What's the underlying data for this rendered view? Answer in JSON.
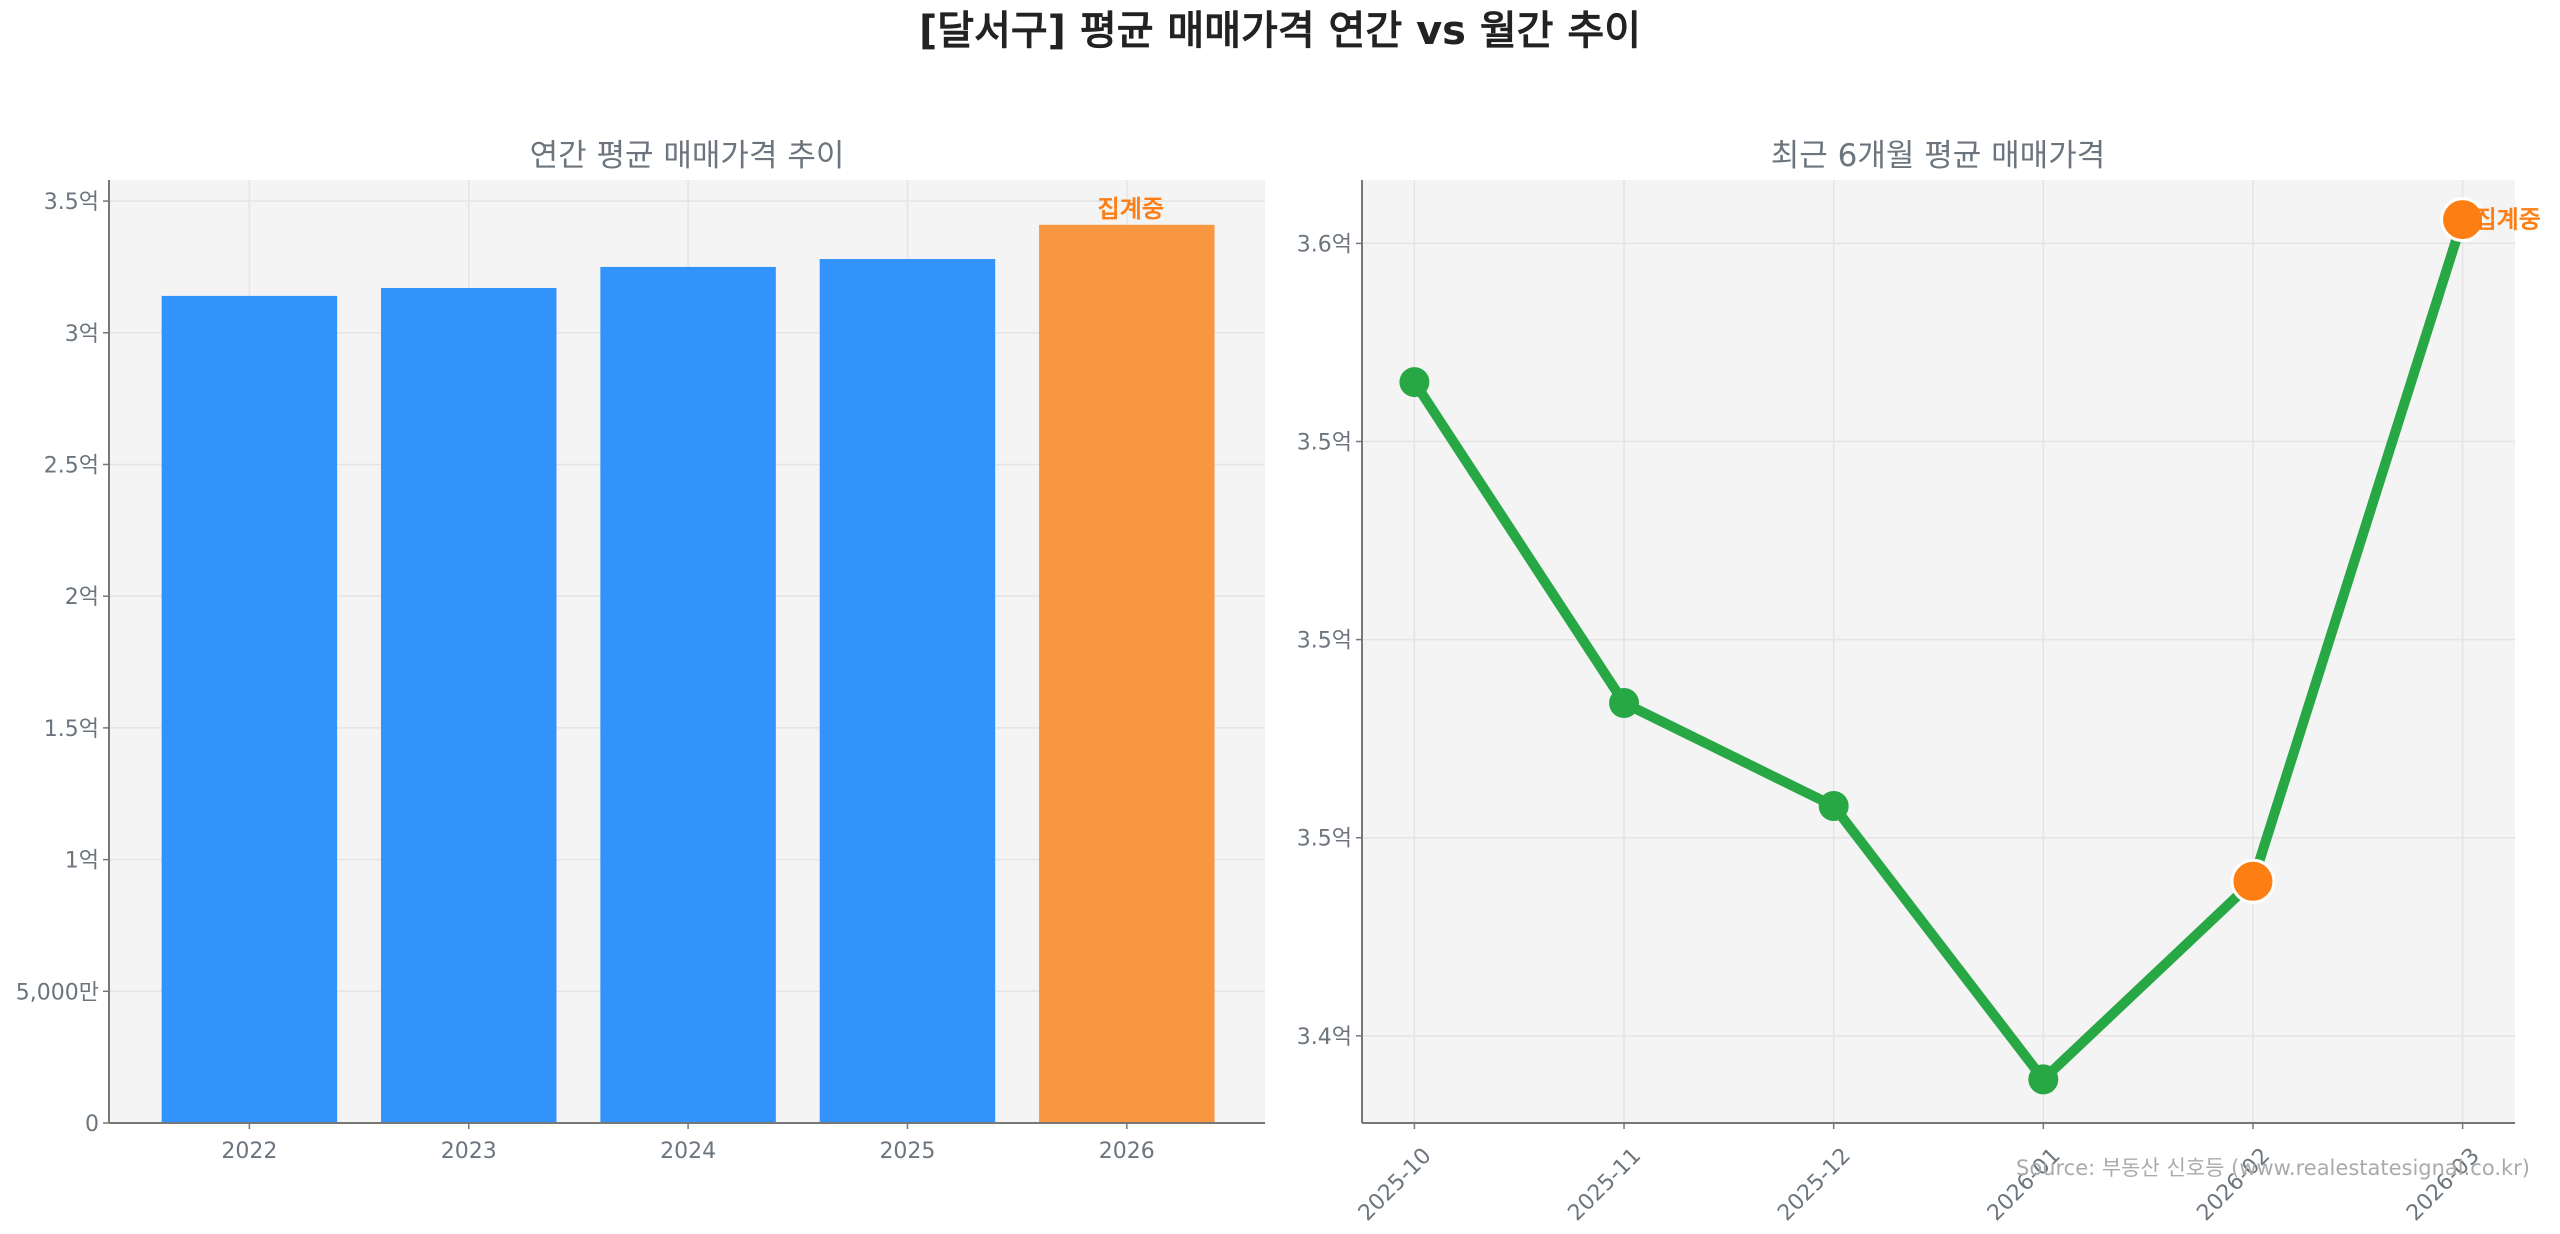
{
  "title": "[달서구] 평균 매매가격 연간 vs 월간 추이",
  "source": "Source: 부동산 신호등 (www.realestatesignal.co.kr)",
  "colors": {
    "bar": "#3193fb",
    "bar_in_progress": "#f99740",
    "line": "#28a745",
    "marker_in_progress": "#fd7f14",
    "annotation": "#fd7e14"
  },
  "chart_data": [
    {
      "type": "bar",
      "title": "연간 평균 매매가격 추이",
      "categories": [
        "2022",
        "2023",
        "2024",
        "2025",
        "2026"
      ],
      "values": [
        3.14,
        3.17,
        3.25,
        3.28,
        3.41
      ],
      "unit": "억",
      "in_progress": [
        false,
        false,
        false,
        false,
        true
      ],
      "annotation": "집계중",
      "ylim": [
        0,
        3.58
      ],
      "yticks": [
        0,
        0.5,
        1,
        1.5,
        2,
        2.5,
        3,
        3.5
      ],
      "ytick_labels": [
        "0",
        "5,000만",
        "1억",
        "1.5억",
        "2억",
        "2.5억",
        "3억",
        "3.5억"
      ],
      "grid": true
    },
    {
      "type": "line",
      "title": "최근 6개월 평균 매매가격",
      "x": [
        "2025-10",
        "2025-11",
        "2025-12",
        "2026-01",
        "2026-02",
        "2026-03"
      ],
      "values": [
        3.565,
        3.484,
        3.458,
        3.389,
        3.439,
        3.606
      ],
      "unit": "억",
      "in_progress": [
        false,
        false,
        false,
        false,
        true,
        true
      ],
      "annotation": "집계중",
      "ylim": [
        3.378,
        3.616
      ],
      "yticks": [
        3.4,
        3.45,
        3.5,
        3.55,
        3.6
      ],
      "ytick_labels": [
        "3.4억",
        "3.5억",
        "3.5억",
        "3.5억",
        "3.6억"
      ],
      "grid": true
    }
  ]
}
